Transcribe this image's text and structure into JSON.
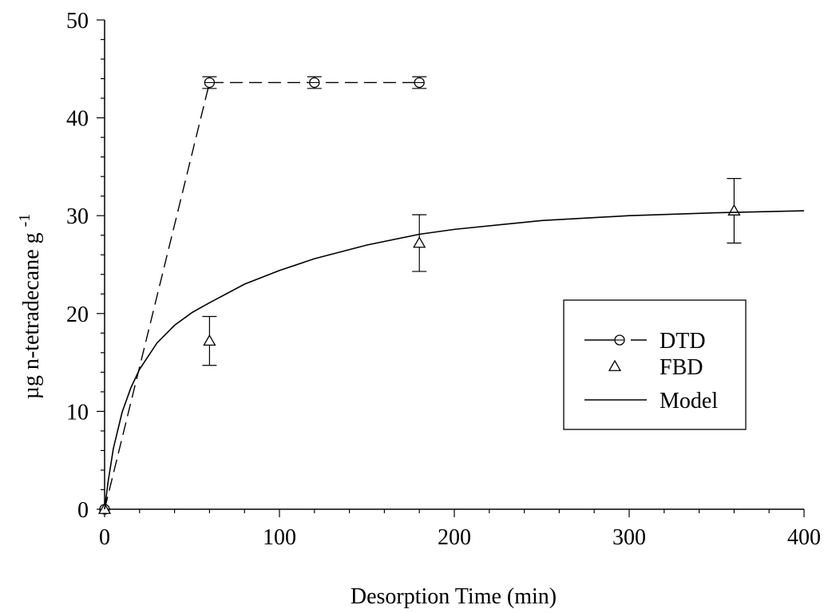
{
  "chart_data": {
    "type": "scatter",
    "xlabel": "Desorption Time (min)",
    "ylabel_main": "µg n-tetradecane g",
    "ylabel_sup": "-1",
    "xlim": [
      0,
      400
    ],
    "ylim": [
      0,
      50
    ],
    "x_ticks": [
      "0",
      "100",
      "200",
      "300",
      "400"
    ],
    "y_ticks": [
      "0",
      "10",
      "20",
      "30",
      "40",
      "50"
    ],
    "grid": false,
    "legend_position": "lower-right",
    "series": [
      {
        "name": "DTD",
        "style": "dashed-line-circle",
        "points": [
          {
            "x": 0,
            "y": 0,
            "err": 0
          },
          {
            "x": 60,
            "y": 43.6,
            "err": 0.6
          },
          {
            "x": 120,
            "y": 43.6,
            "err": 0.6
          },
          {
            "x": 180,
            "y": 43.6,
            "err": 0.6
          }
        ]
      },
      {
        "name": "FBD",
        "style": "triangle",
        "points": [
          {
            "x": 0,
            "y": 0,
            "err": 0
          },
          {
            "x": 60,
            "y": 17.2,
            "err": 2.5
          },
          {
            "x": 180,
            "y": 27.2,
            "err": 2.9
          },
          {
            "x": 360,
            "y": 30.5,
            "err": 3.3
          }
        ]
      },
      {
        "name": "Model",
        "style": "solid-line",
        "points": [
          {
            "x": 0,
            "y": 0
          },
          {
            "x": 2,
            "y": 2.8
          },
          {
            "x": 5,
            "y": 6.2
          },
          {
            "x": 10,
            "y": 9.9
          },
          {
            "x": 15,
            "y": 12.4
          },
          {
            "x": 20,
            "y": 14.3
          },
          {
            "x": 30,
            "y": 17.0
          },
          {
            "x": 40,
            "y": 18.8
          },
          {
            "x": 50,
            "y": 20.1
          },
          {
            "x": 60,
            "y": 21.1
          },
          {
            "x": 80,
            "y": 23.0
          },
          {
            "x": 100,
            "y": 24.4
          },
          {
            "x": 120,
            "y": 25.6
          },
          {
            "x": 150,
            "y": 27.0
          },
          {
            "x": 180,
            "y": 28.1
          },
          {
            "x": 200,
            "y": 28.6
          },
          {
            "x": 250,
            "y": 29.5
          },
          {
            "x": 300,
            "y": 30.0
          },
          {
            "x": 350,
            "y": 30.3
          },
          {
            "x": 400,
            "y": 30.5
          }
        ]
      }
    ]
  },
  "legend": {
    "items": [
      {
        "label": "DTD"
      },
      {
        "label": "FBD"
      },
      {
        "label": "Model"
      }
    ]
  }
}
